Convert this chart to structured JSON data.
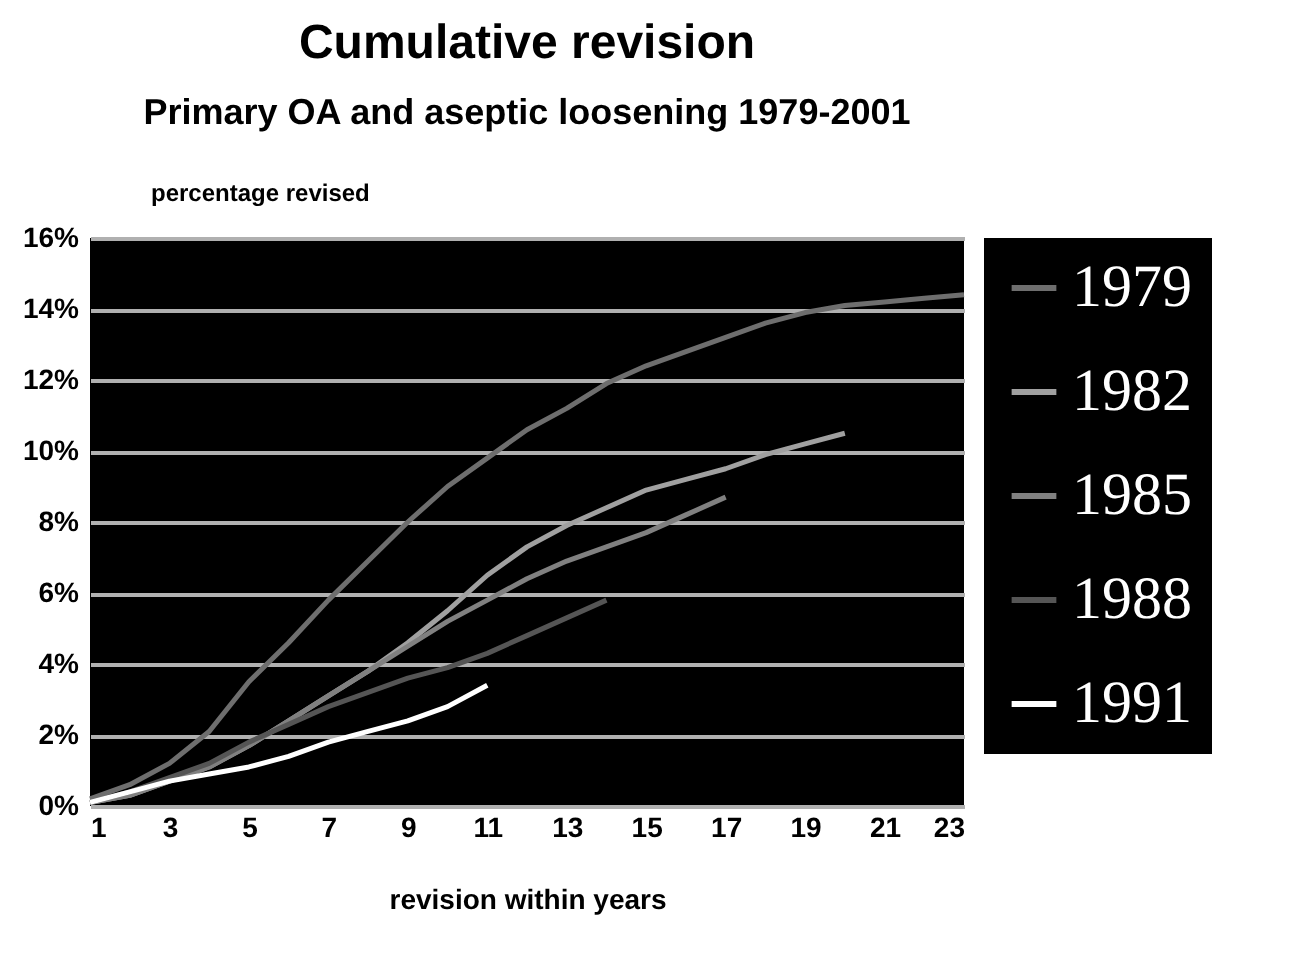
{
  "chart_data": {
    "type": "line",
    "title": "Cumulative revision",
    "subtitle": "Primary OA and aseptic loosening 1979-2001",
    "ylabel": "percentage revised",
    "xlabel": "revision within years",
    "x": [
      1,
      2,
      3,
      4,
      5,
      6,
      7,
      8,
      9,
      10,
      11,
      12,
      13,
      14,
      15,
      16,
      17,
      18,
      19,
      20,
      21,
      22,
      23
    ],
    "series": [
      {
        "name": "1979",
        "color": "#6e6e6e",
        "values": [
          0.2,
          0.6,
          1.2,
          2.1,
          3.5,
          4.6,
          5.8,
          6.9,
          8.0,
          9.0,
          9.8,
          10.6,
          11.2,
          11.9,
          12.4,
          12.8,
          13.2,
          13.6,
          13.9,
          14.1,
          14.2,
          14.3,
          14.4
        ]
      },
      {
        "name": "1982",
        "color": "#a0a0a0",
        "values": [
          0.1,
          0.3,
          0.7,
          1.1,
          1.7,
          2.4,
          3.1,
          3.8,
          4.6,
          5.5,
          6.5,
          7.3,
          7.9,
          8.4,
          8.9,
          9.2,
          9.5,
          9.9,
          10.2,
          10.5,
          null,
          null,
          null
        ]
      },
      {
        "name": "1985",
        "color": "#808080",
        "values": [
          0.1,
          0.3,
          0.7,
          1.1,
          1.7,
          2.4,
          3.1,
          3.8,
          4.5,
          5.2,
          5.8,
          6.4,
          6.9,
          7.3,
          7.7,
          8.2,
          8.7,
          null,
          null,
          null,
          null,
          null,
          null
        ]
      },
      {
        "name": "1988",
        "color": "#555555",
        "values": [
          0.1,
          0.4,
          0.8,
          1.2,
          1.8,
          2.3,
          2.8,
          3.2,
          3.6,
          3.9,
          4.3,
          4.8,
          5.3,
          5.8,
          null,
          null,
          null,
          null,
          null,
          null,
          null,
          null,
          null
        ]
      },
      {
        "name": "1991",
        "color": "#ffffff",
        "values": [
          0.1,
          0.4,
          0.7,
          0.9,
          1.1,
          1.4,
          1.8,
          2.1,
          2.4,
          2.8,
          3.4,
          null,
          null,
          null,
          null,
          null,
          null,
          null,
          null,
          null,
          null,
          null,
          null
        ]
      }
    ],
    "xlim": [
      1,
      23
    ],
    "xticks": [
      1,
      3,
      5,
      7,
      9,
      11,
      13,
      15,
      17,
      19,
      21,
      23
    ],
    "ylim": [
      0,
      16
    ],
    "yticks": [
      {
        "value": 0,
        "label": "0%"
      },
      {
        "value": 2,
        "label": "2%"
      },
      {
        "value": 4,
        "label": "4%"
      },
      {
        "value": 6,
        "label": "6%"
      },
      {
        "value": 8,
        "label": "8%"
      },
      {
        "value": 10,
        "label": "10%"
      },
      {
        "value": 12,
        "label": "12%"
      },
      {
        "value": 14,
        "label": "14%"
      },
      {
        "value": 16,
        "label": "16%"
      }
    ],
    "grid": "y",
    "legend": "right",
    "marker": "none",
    "line_style": "solid"
  }
}
